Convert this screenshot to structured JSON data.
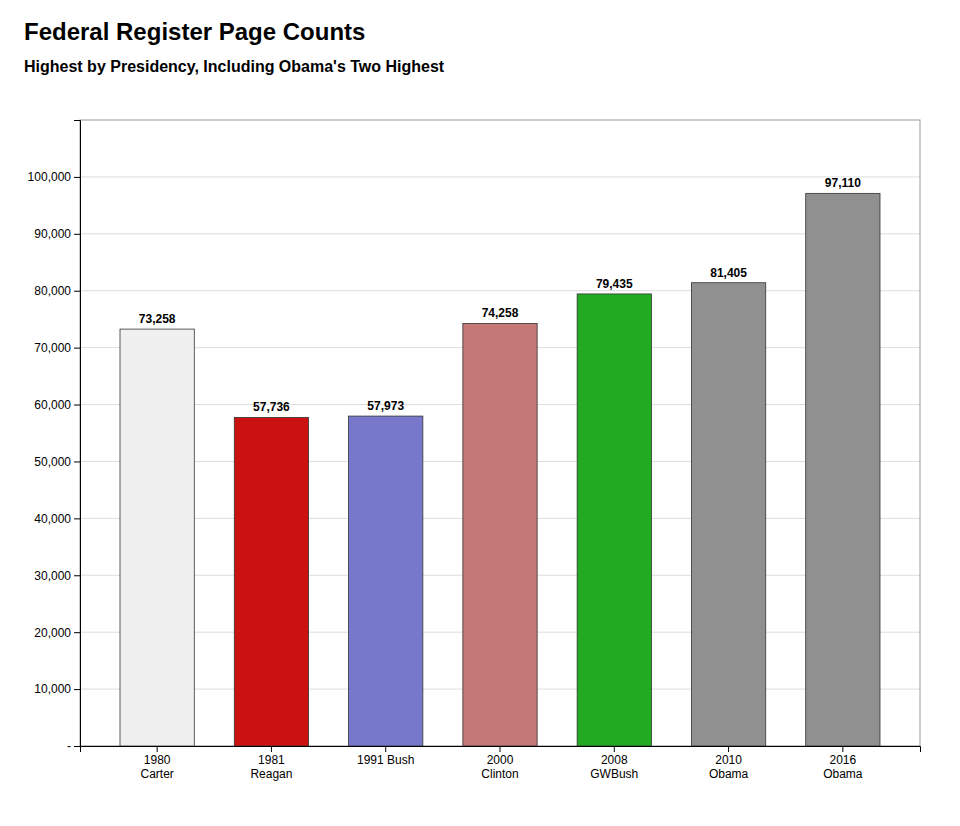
{
  "chart_data": {
    "type": "bar",
    "title": "Federal Register Page Counts",
    "subtitle": "Highest by Presidency, Including Obama's Two Highest",
    "categories": [
      "1980\nCarter",
      "1981\nReagan",
      "1991 Bush",
      "2000\nClinton",
      "2008\nGWBush",
      "2010\nObama",
      "2016\nObama"
    ],
    "values": [
      73258,
      57736,
      57973,
      74258,
      79435,
      81405,
      97110
    ],
    "value_labels": [
      "73,258",
      "57,736",
      "57,973",
      "74,258",
      "79,435",
      "81,405",
      "97,110"
    ],
    "data_labels": true,
    "colors": [
      "#f0f0f0",
      "#cc1111",
      "#7777cc",
      "#c47878",
      "#22aa22",
      "#909090",
      "#909090"
    ],
    "ylim": [
      0,
      110000
    ],
    "yticks": [
      {
        "value": 0,
        "label": "-"
      },
      {
        "value": 10000,
        "label": "10,000"
      },
      {
        "value": 20000,
        "label": "20,000"
      },
      {
        "value": 30000,
        "label": "30,000"
      },
      {
        "value": 40000,
        "label": "40,000"
      },
      {
        "value": 50000,
        "label": "50,000"
      },
      {
        "value": 60000,
        "label": "60,000"
      },
      {
        "value": 70000,
        "label": "70,000"
      },
      {
        "value": 80000,
        "label": "80,000"
      },
      {
        "value": 90000,
        "label": "90,000"
      },
      {
        "value": 100000,
        "label": "100,000"
      }
    ],
    "grid": true
  }
}
